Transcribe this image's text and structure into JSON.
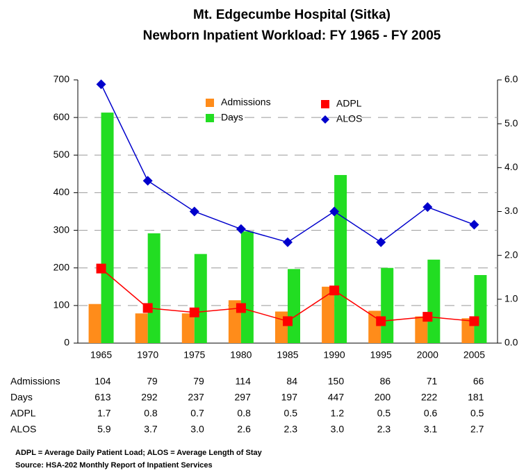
{
  "chart_data": {
    "type": "bar-line",
    "title": "Mt. Edgecumbe Hospital (Sitka)",
    "subtitle": "Newborn Inpatient Workload: FY 1965 - FY 2005",
    "categories": [
      "1965",
      "1970",
      "1975",
      "1980",
      "1985",
      "1990",
      "1995",
      "2000",
      "2005"
    ],
    "series": [
      {
        "name": "Admissions",
        "color": "#ff8c1a",
        "kind": "bar",
        "values": [
          104,
          79,
          79,
          114,
          84,
          150,
          86,
          71,
          66
        ]
      },
      {
        "name": "Days",
        "color": "#22dd22",
        "kind": "bar",
        "values": [
          613,
          292,
          237,
          297,
          197,
          447,
          200,
          222,
          181
        ]
      },
      {
        "name": "ADPL",
        "color": "#ff0000",
        "kind": "line",
        "marker": "square",
        "axis": "y2",
        "values": [
          1.7,
          0.8,
          0.7,
          0.8,
          0.5,
          1.2,
          0.5,
          0.6,
          0.5
        ]
      },
      {
        "name": "ALOS",
        "color": "#0000cc",
        "kind": "line",
        "marker": "diamond",
        "axis": "y2",
        "values": [
          5.9,
          3.7,
          3.0,
          2.6,
          2.3,
          3.0,
          2.3,
          3.1,
          2.7
        ],
        "value_labels": [
          "5.9",
          "3.7",
          "3.0",
          "2.6",
          "2.3",
          "3.0",
          "2.3",
          "3.1",
          "2.7"
        ]
      }
    ],
    "ylim": [
      0,
      700
    ],
    "yticks": [
      0,
      100,
      200,
      300,
      400,
      500,
      600,
      700
    ],
    "y2lim": [
      0,
      6
    ],
    "y2ticks": [
      {
        "value": 0,
        "label": "0.0"
      },
      {
        "value": 1,
        "label": "1.0"
      },
      {
        "value": 2,
        "label": "2.0"
      },
      {
        "value": 3,
        "label": "3.0"
      },
      {
        "value": 4,
        "label": "4.0"
      },
      {
        "value": 5,
        "label": "5.0"
      },
      {
        "value": 6,
        "label": "6.0"
      }
    ],
    "grid": true,
    "footnotes": [
      "ADPL = Average Daily Patient Load; ALOS = Average Length of Stay",
      "Source: HSA-202 Monthly Report of Inpatient Services"
    ]
  }
}
